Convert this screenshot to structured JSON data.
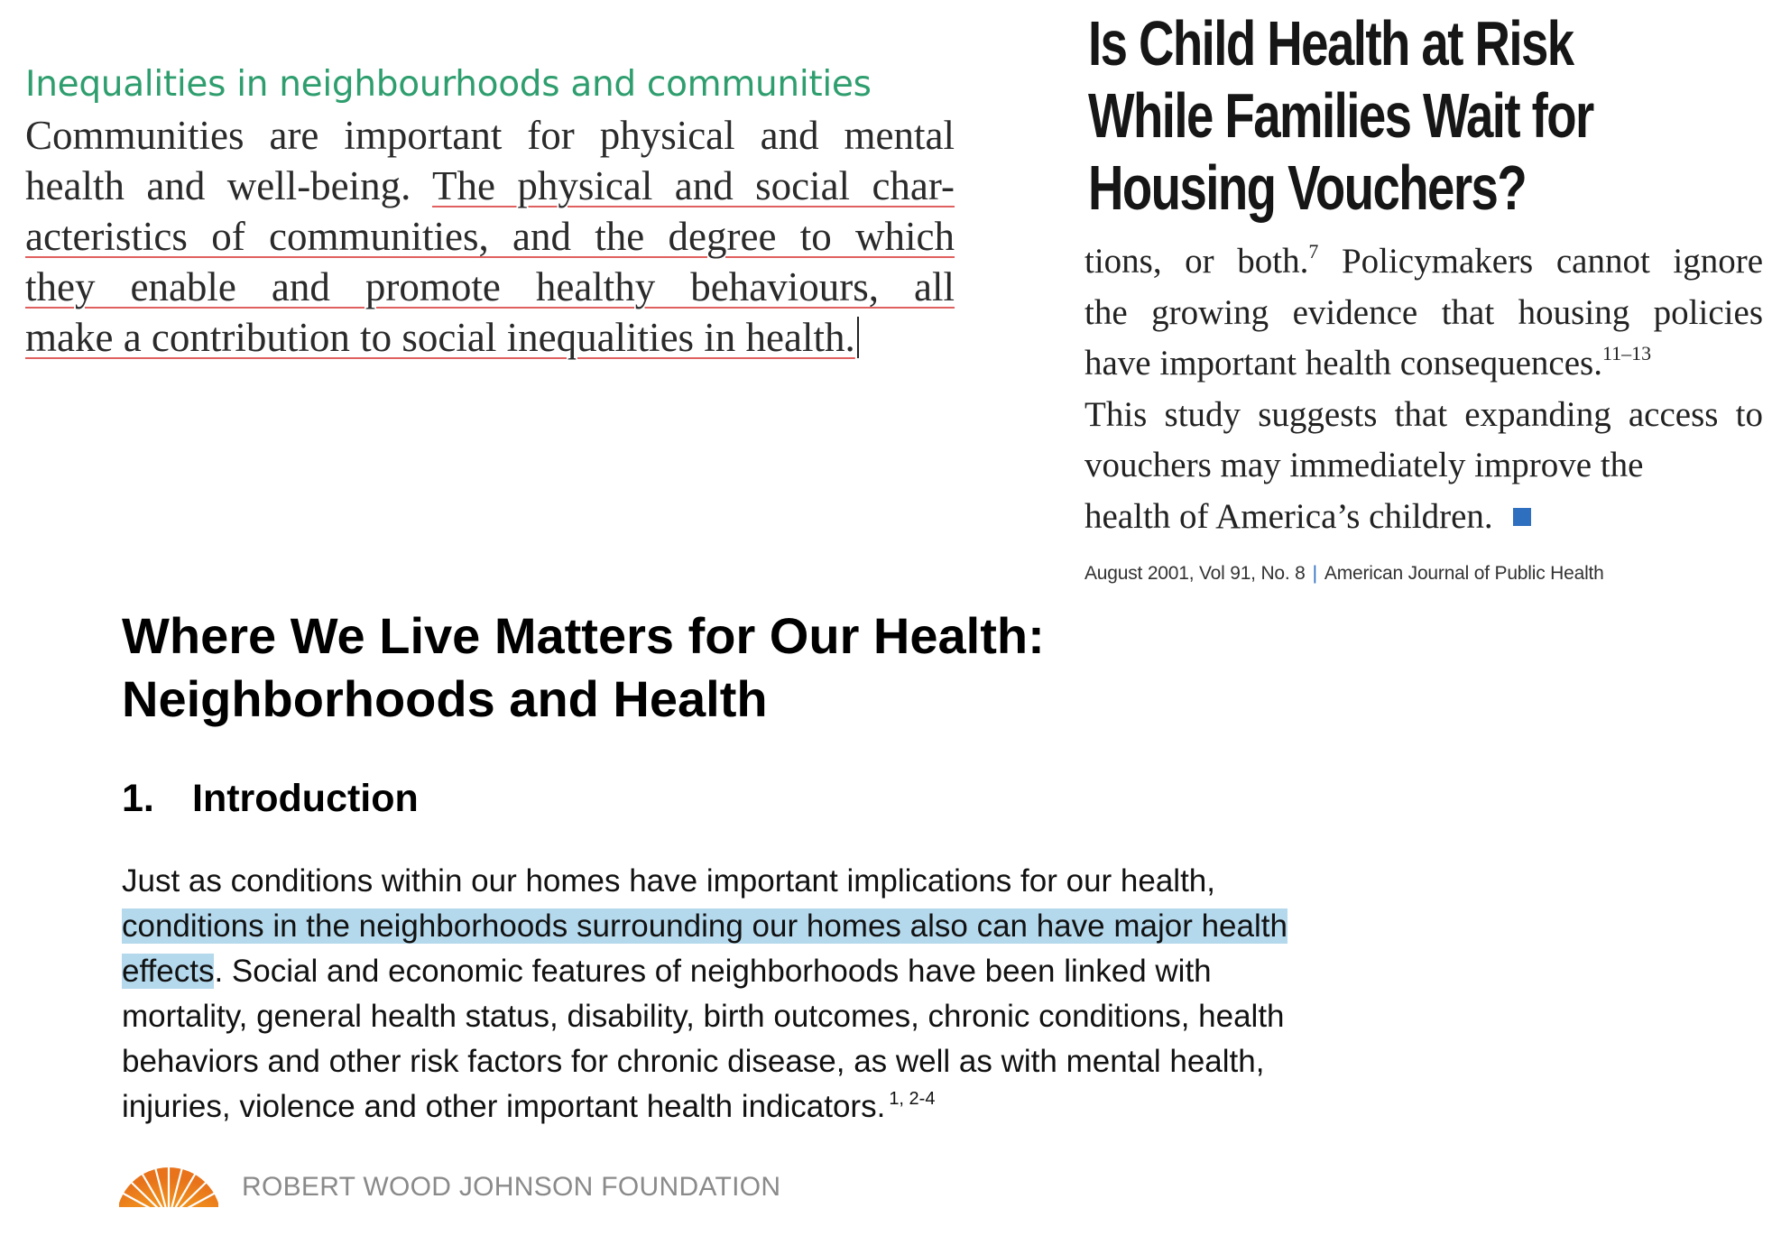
{
  "inequalities": {
    "heading": "Inequalities in neighbourhoods and communities",
    "lines": [
      "Communities are important for physical and mental",
      "health and well-being. ",
      "The physical and social char-",
      "acteristics of communities, and the degree to which",
      "they enable and promote healthy behaviours, all",
      "make a contribution to social inequalities in health."
    ]
  },
  "child_health": {
    "title_lines": [
      "Is Child Health at Risk",
      "While Families Wait for",
      "Housing Vouchers?"
    ],
    "body": {
      "l1a": "tions, or both.",
      "l1sup": "7",
      "l1b": " Policymakers cannot ignore",
      "l2": "the growing evidence that housing policies",
      "l3a": "have important health consequences.",
      "l3sup": "11–13",
      "l4": "This study suggests that expanding access to",
      "l5": "vouchers may immediately improve the",
      "l6": "health of America’s children."
    },
    "footer_left": "August 2001, Vol 91, No. 8",
    "footer_sep": "|",
    "footer_right": "American Journal of Public Health",
    "accent_color": "#2f6fbf"
  },
  "where_we_live": {
    "title_lines": [
      "Where We Live Matters for Our Health:",
      "Neighborhoods and Health"
    ],
    "section_number": "1.",
    "section_title": "Introduction",
    "body": {
      "l1": "Just as conditions within our homes have important implications for our health,",
      "l2_highlight": "conditions in the neighborhoods surrounding our homes also can have major health",
      "l3_highlight": "effects",
      "l3_rest": ".  Social and economic features of neighborhoods have been linked with",
      "l4": "mortality, general health status, disability, birth outcomes, chronic conditions, health",
      "l5": "behaviors and other risk factors for chronic disease, as well as with mental health,",
      "l6": "injuries, violence and other important health indicators.",
      "l6sup": "1, 2-4"
    },
    "highlight_color": "#b4d8ec"
  },
  "rwjf_logo": {
    "name": "ROBERT WOOD JOHNSON FOUNDATION",
    "icon": "sunburst-logo-icon"
  },
  "colors": {
    "heading_green": "#2f9e6e",
    "underline_red": "#e0605f"
  }
}
